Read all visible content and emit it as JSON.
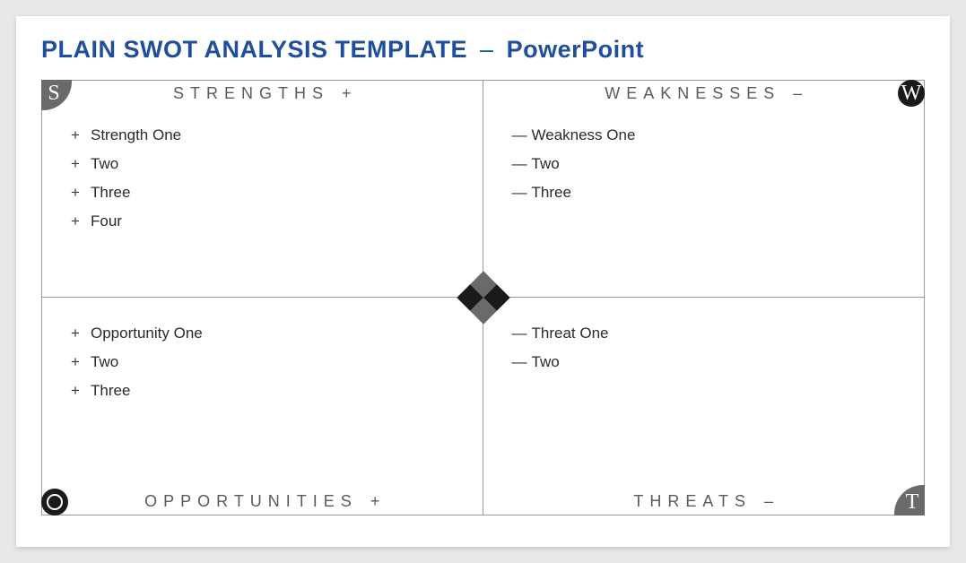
{
  "title": {
    "main": "PLAIN SWOT ANALYSIS TEMPLATE",
    "separator": "–",
    "sub": "PowerPoint",
    "color": "#1f4e9c",
    "fontsize": 27
  },
  "layout": {
    "type": "swot-2x2",
    "slide_bg": "#ffffff",
    "page_bg": "#e8e8e8",
    "border_color": "#9a9a9a",
    "quadrant_title_color": "#5a5a5a",
    "quadrant_title_fontsize": 18,
    "quadrant_title_letterspacing": 7,
    "item_color": "#2a2a2a",
    "item_fontsize": 17
  },
  "badges": {
    "s": {
      "letter": "S",
      "bg": "#6a6a6a",
      "shape": "quarter-round-br",
      "pos": "top-left"
    },
    "w": {
      "letter": "W",
      "bg": "#1a1a1a",
      "shape": "circle",
      "pos": "top-right"
    },
    "o": {
      "letter": "O",
      "bg": "#1a1a1a",
      "shape": "circle-ring",
      "pos": "bottom-left"
    },
    "t": {
      "letter": "T",
      "bg": "#6a6a6a",
      "shape": "quarter-round-tl",
      "pos": "bottom-right"
    }
  },
  "center_diamond": {
    "size": 42,
    "colors": [
      "#6a6a6a",
      "#1a1a1a",
      "#1a1a1a",
      "#6a6a6a"
    ]
  },
  "quadrants": {
    "strengths": {
      "label": "STRENGTHS",
      "sign": "+",
      "title_position": "top",
      "bullet": "+",
      "items": [
        "Strength One",
        "Two",
        "Three",
        "Four"
      ]
    },
    "weaknesses": {
      "label": "WEAKNESSES",
      "sign": "–",
      "title_position": "top",
      "bullet": "—",
      "items": [
        "Weakness One",
        "Two",
        "Three"
      ]
    },
    "opportunities": {
      "label": "OPPORTUNITIES",
      "sign": "+",
      "title_position": "bottom",
      "bullet": "+",
      "items": [
        "Opportunity One",
        "Two",
        "Three"
      ]
    },
    "threats": {
      "label": "THREATS",
      "sign": "–",
      "title_position": "bottom",
      "bullet": "—",
      "items": [
        "Threat One",
        "Two"
      ]
    }
  }
}
